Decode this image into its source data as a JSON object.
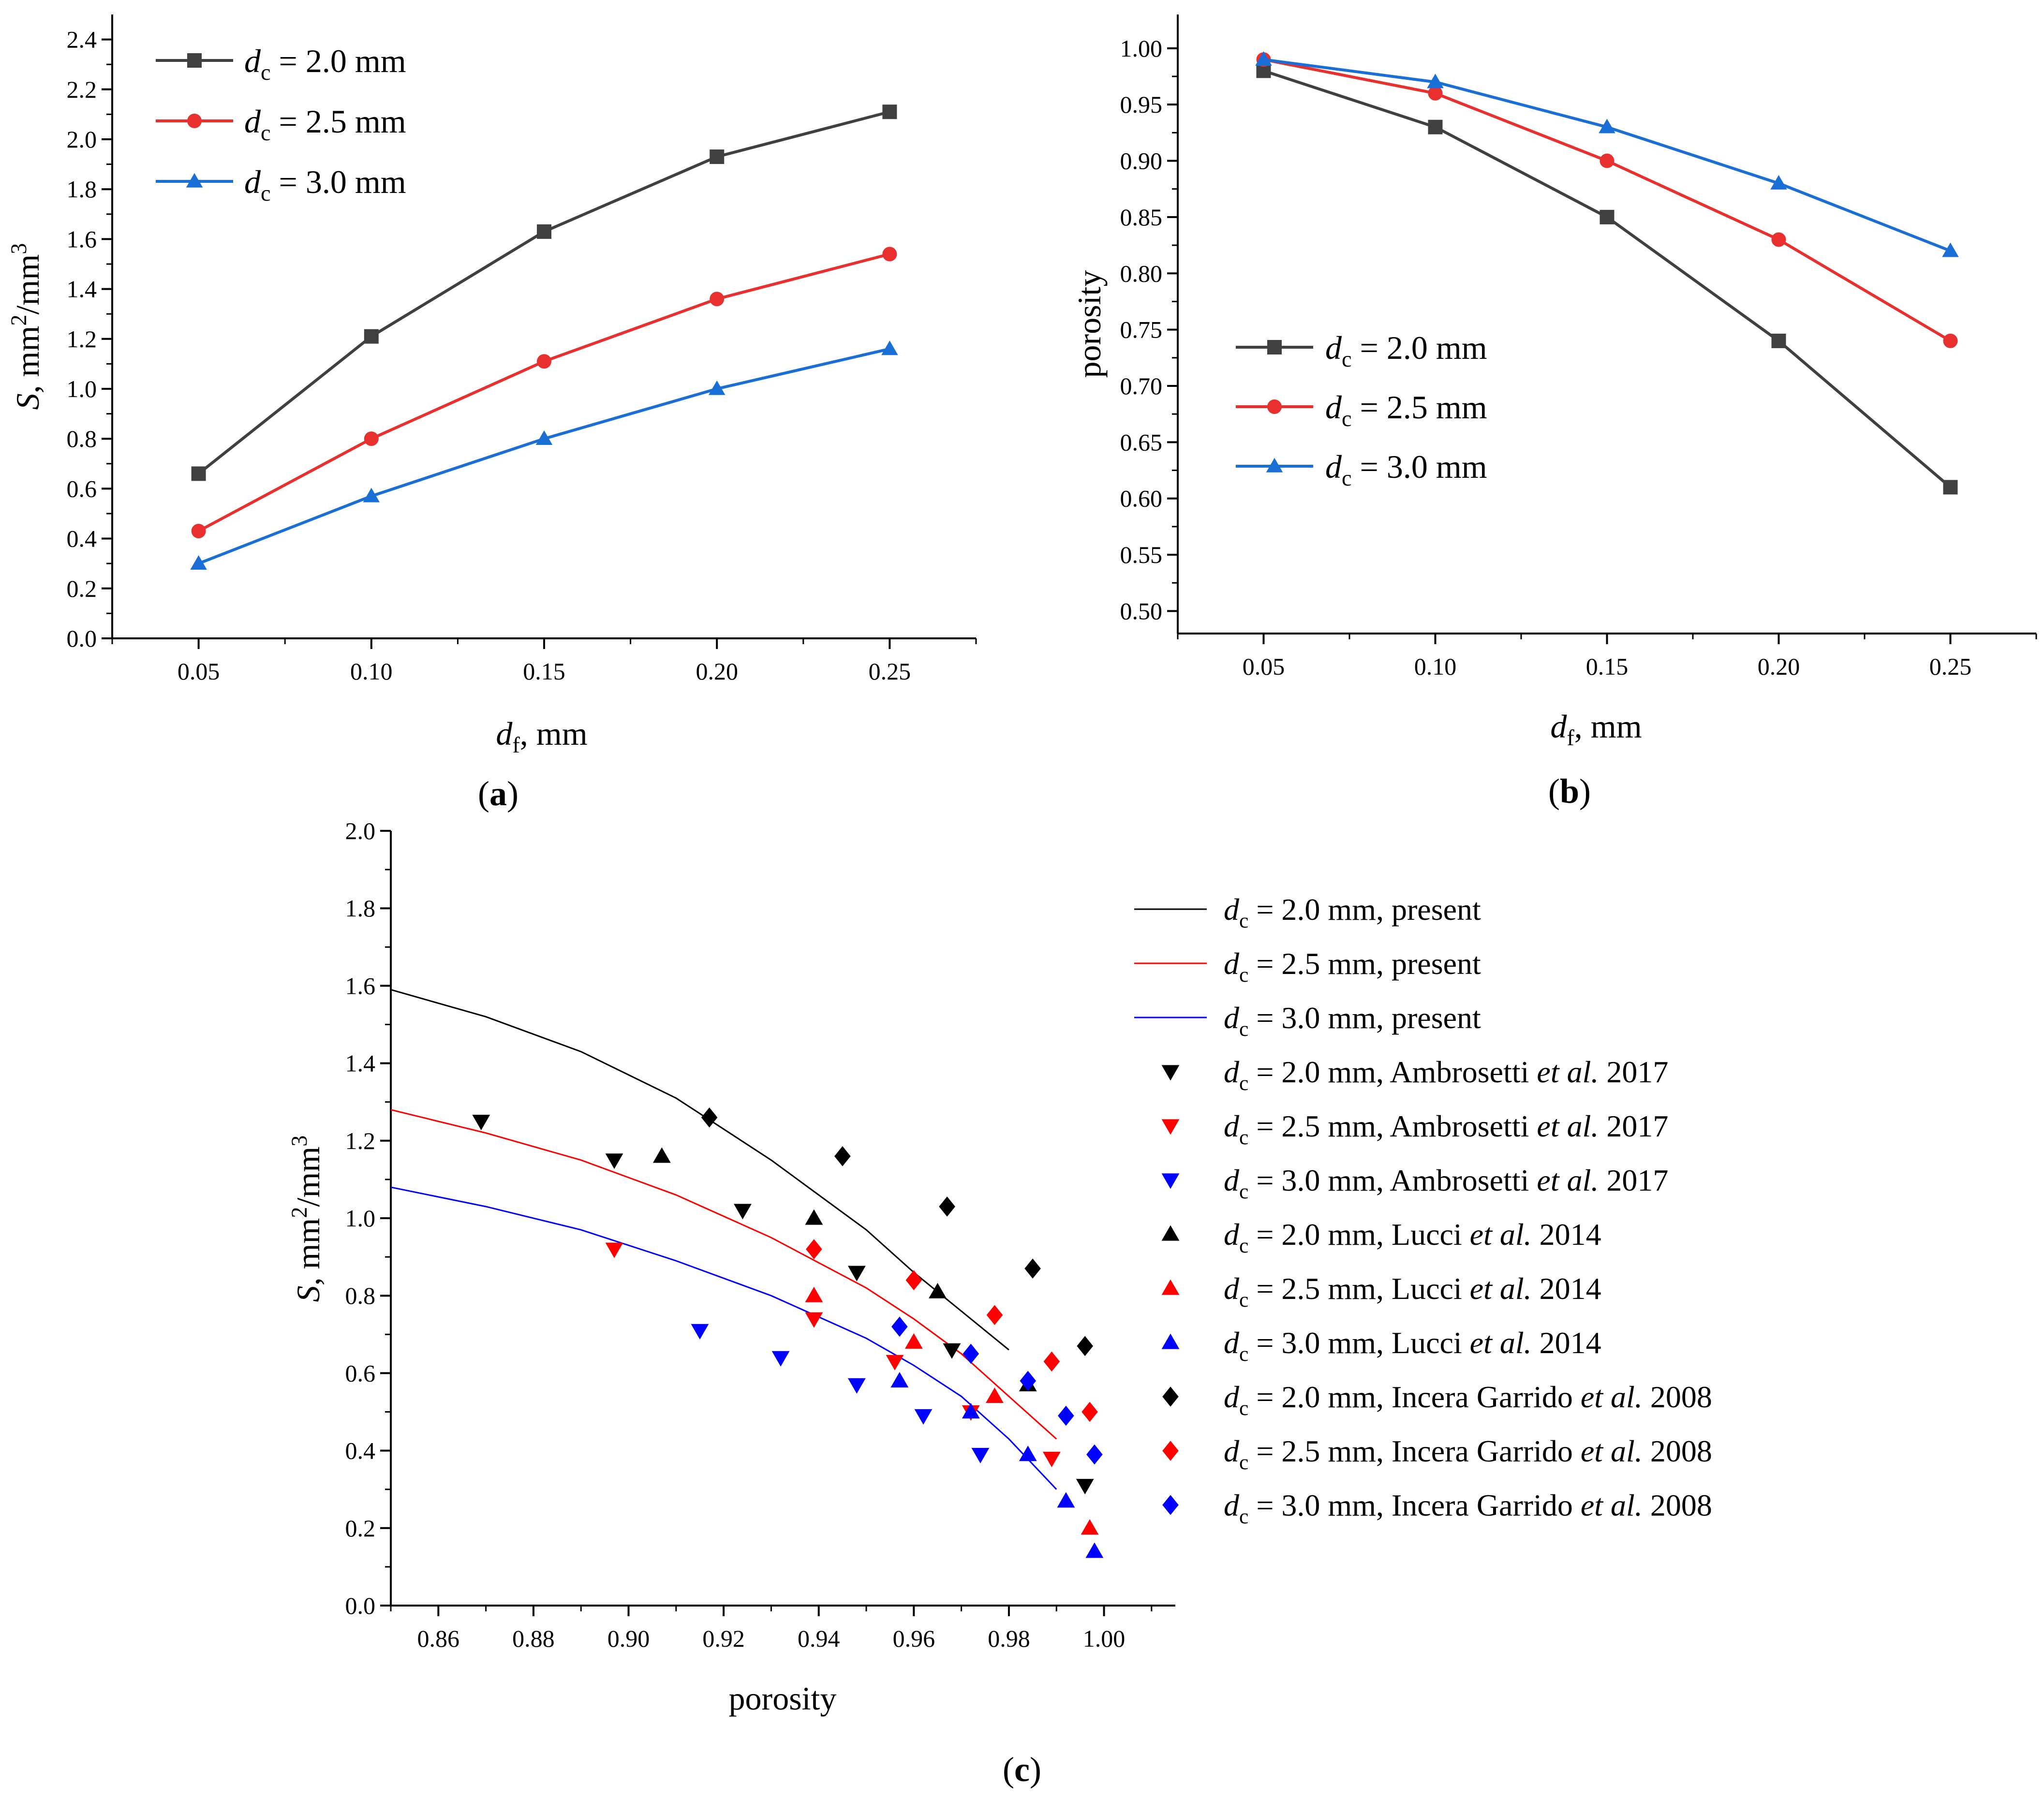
{
  "chart_data": [
    {
      "panel": "(a)",
      "type": "line",
      "xlabel_html": "d_f, mm",
      "ylabel_html": "S, mm2/mm3",
      "xlim": [
        0.025,
        0.275
      ],
      "ylim": [
        0,
        2.5
      ],
      "x_ticks": [
        0.05,
        0.1,
        0.15,
        0.2,
        0.25
      ],
      "y_ticks": [
        0.0,
        0.2,
        0.4,
        0.6,
        0.8,
        1.0,
        1.2,
        1.4,
        1.6,
        1.8,
        2.0,
        2.2,
        2.4
      ],
      "x": [
        0.05,
        0.1,
        0.15,
        0.2,
        0.25
      ],
      "legend_position": "top-left",
      "series": [
        {
          "name": "d_c = 2.0 mm",
          "color": "#404040",
          "marker": "square",
          "values": [
            0.66,
            1.21,
            1.63,
            1.93,
            2.11
          ]
        },
        {
          "name": "d_c = 2.5 mm",
          "color": "#e8312f",
          "marker": "circle",
          "values": [
            0.43,
            0.8,
            1.11,
            1.36,
            1.54
          ]
        },
        {
          "name": "d_c = 3.0 mm",
          "color": "#1a6fd6",
          "marker": "triangle-up",
          "values": [
            0.3,
            0.57,
            0.8,
            1.0,
            1.16
          ]
        }
      ]
    },
    {
      "panel": "(b)",
      "type": "line",
      "xlabel_html": "d_f, mm",
      "ylabel": "porosity",
      "xlim": [
        0.025,
        0.275
      ],
      "ylim": [
        0.48,
        1.03
      ],
      "x_ticks": [
        0.05,
        0.1,
        0.15,
        0.2,
        0.25
      ],
      "y_ticks": [
        0.5,
        0.55,
        0.6,
        0.65,
        0.7,
        0.75,
        0.8,
        0.85,
        0.9,
        0.95,
        1.0
      ],
      "x": [
        0.05,
        0.1,
        0.15,
        0.2,
        0.25
      ],
      "legend_position": "center-left",
      "series": [
        {
          "name": "d_c = 2.0 mm",
          "color": "#404040",
          "marker": "square",
          "values": [
            0.98,
            0.93,
            0.85,
            0.74,
            0.61
          ]
        },
        {
          "name": "d_c = 2.5 mm",
          "color": "#e8312f",
          "marker": "circle",
          "values": [
            0.99,
            0.96,
            0.9,
            0.83,
            0.74
          ]
        },
        {
          "name": "d_c = 3.0 mm",
          "color": "#1a6fd6",
          "marker": "triangle-up",
          "values": [
            0.99,
            0.97,
            0.93,
            0.88,
            0.82
          ]
        }
      ]
    },
    {
      "panel": "(c)",
      "type": "scatter",
      "xlabel": "porosity",
      "ylabel_html": "S, mm2/mm3",
      "xlim": [
        0.85,
        1.015
      ],
      "ylim": [
        0,
        2.0
      ],
      "x_ticks": [
        0.86,
        0.88,
        0.9,
        0.92,
        0.94,
        0.96,
        0.98,
        1.0
      ],
      "y_ticks": [
        0.0,
        0.2,
        0.4,
        0.6,
        0.8,
        1.0,
        1.2,
        1.4,
        1.6,
        1.8,
        2.0
      ],
      "legend_position": "right",
      "curves": [
        {
          "name": "d_c = 2.0 mm, present",
          "color": "#000000",
          "x": [
            0.85,
            0.87,
            0.89,
            0.91,
            0.93,
            0.95,
            0.96,
            0.97,
            0.98
          ],
          "y": [
            1.59,
            1.52,
            1.43,
            1.31,
            1.15,
            0.97,
            0.86,
            0.76,
            0.66
          ]
        },
        {
          "name": "d_c = 2.5 mm, present",
          "color": "#ff0000",
          "x": [
            0.85,
            0.87,
            0.89,
            0.91,
            0.93,
            0.95,
            0.96,
            0.97,
            0.98,
            0.99
          ],
          "y": [
            1.28,
            1.22,
            1.15,
            1.06,
            0.95,
            0.82,
            0.74,
            0.65,
            0.54,
            0.43
          ]
        },
        {
          "name": "d_c = 3.0 mm, present",
          "color": "#0000ff",
          "x": [
            0.85,
            0.87,
            0.89,
            0.91,
            0.93,
            0.95,
            0.96,
            0.97,
            0.98,
            0.99
          ],
          "y": [
            1.08,
            1.03,
            0.97,
            0.89,
            0.8,
            0.69,
            0.62,
            0.54,
            0.43,
            0.3
          ]
        }
      ],
      "series": [
        {
          "name": "d_c = 2.0 mm, Ambrosetti et al. 2017",
          "color": "#000000",
          "marker": "triangle-down",
          "points": [
            [
              0.869,
              1.25
            ],
            [
              0.897,
              1.15
            ],
            [
              0.924,
              1.02
            ],
            [
              0.948,
              0.86
            ],
            [
              0.968,
              0.66
            ],
            [
              0.996,
              0.31
            ]
          ]
        },
        {
          "name": "d_c = 2.5 mm, Ambrosetti et al. 2017",
          "color": "#ff0000",
          "marker": "triangle-down",
          "points": [
            [
              0.897,
              0.92
            ],
            [
              0.939,
              0.74
            ],
            [
              0.956,
              0.63
            ],
            [
              0.972,
              0.5
            ],
            [
              0.989,
              0.38
            ]
          ]
        },
        {
          "name": "d_c = 3.0 mm, Ambrosetti et al. 2017",
          "color": "#0000ff",
          "marker": "triangle-down",
          "points": [
            [
              0.915,
              0.71
            ],
            [
              0.932,
              0.64
            ],
            [
              0.948,
              0.57
            ],
            [
              0.962,
              0.49
            ],
            [
              0.974,
              0.39
            ]
          ]
        },
        {
          "name": "d_c = 2.0 mm, Lucci et al. 2014",
          "color": "#000000",
          "marker": "triangle-up",
          "points": [
            [
              0.907,
              1.16
            ],
            [
              0.939,
              1.0
            ],
            [
              0.965,
              0.81
            ],
            [
              0.984,
              0.57
            ]
          ]
        },
        {
          "name": "d_c = 2.5 mm, Lucci et al. 2014",
          "color": "#ff0000",
          "marker": "triangle-up",
          "points": [
            [
              0.939,
              0.8
            ],
            [
              0.96,
              0.68
            ],
            [
              0.977,
              0.54
            ],
            [
              0.997,
              0.2
            ]
          ]
        },
        {
          "name": "d_c = 3.0 mm, Lucci et al. 2014",
          "color": "#0000ff",
          "marker": "triangle-up",
          "points": [
            [
              0.957,
              0.58
            ],
            [
              0.972,
              0.5
            ],
            [
              0.984,
              0.39
            ],
            [
              0.992,
              0.27
            ],
            [
              0.998,
              0.14
            ]
          ]
        },
        {
          "name": "d_c = 2.0 mm, Incera Garrido et al. 2008",
          "color": "#000000",
          "marker": "diamond",
          "points": [
            [
              0.917,
              1.26
            ],
            [
              0.945,
              1.16
            ],
            [
              0.967,
              1.03
            ],
            [
              0.985,
              0.87
            ],
            [
              0.996,
              0.67
            ]
          ]
        },
        {
          "name": "d_c = 2.5 mm, Incera Garrido et al. 2008",
          "color": "#ff0000",
          "marker": "diamond",
          "points": [
            [
              0.939,
              0.92
            ],
            [
              0.96,
              0.84
            ],
            [
              0.977,
              0.75
            ],
            [
              0.989,
              0.63
            ],
            [
              0.997,
              0.5
            ]
          ]
        },
        {
          "name": "d_c = 3.0 mm, Incera Garrido et al. 2008",
          "color": "#0000ff",
          "marker": "diamond",
          "points": [
            [
              0.957,
              0.72
            ],
            [
              0.972,
              0.65
            ],
            [
              0.984,
              0.58
            ],
            [
              0.992,
              0.49
            ],
            [
              0.998,
              0.39
            ]
          ]
        }
      ]
    }
  ]
}
